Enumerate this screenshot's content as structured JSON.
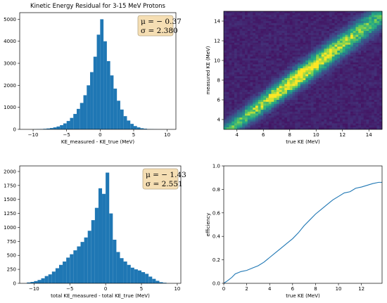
{
  "colors": {
    "bar": "#1f77b4",
    "line": "#1f77b4",
    "box_fill": "#f5deb3",
    "box_edge": "#b8a98a"
  },
  "chart_data": [
    {
      "id": "hist_ke",
      "type": "bar",
      "title": "Kinetic Energy Residual for 3-15 MeV Protons",
      "xlabel": "KE_measured - KE_true (MeV)",
      "ylabel": "",
      "xlim": [
        -12,
        11.3
      ],
      "ylim": [
        0,
        5300
      ],
      "xticks": [
        -10,
        -5,
        0,
        5,
        10
      ],
      "xtick_labels": [
        "−10",
        "−5",
        "0",
        "5",
        "10"
      ],
      "yticks": [
        0,
        1000,
        2000,
        3000,
        4000,
        5000
      ],
      "ytick_labels": [
        "0",
        "1000",
        "2000",
        "3000",
        "4000",
        "5000"
      ],
      "stats_lines": [
        "μ = − 0.37",
        "σ = 2.380"
      ],
      "bin_edges": [
        -10,
        -9.5,
        -9,
        -8.5,
        -8,
        -7.5,
        -7,
        -6.5,
        -6,
        -5.5,
        -5,
        -4.5,
        -4,
        -3.5,
        -3,
        -2.5,
        -2,
        -1.5,
        -1,
        -0.5,
        0,
        0.5,
        1,
        1.5,
        2,
        2.5,
        3,
        3.5,
        4,
        4.5,
        5,
        5.5,
        6,
        6.5,
        7,
        7.5,
        8,
        8.5,
        9,
        9.5,
        10
      ],
      "counts": [
        5,
        10,
        15,
        25,
        40,
        60,
        90,
        130,
        190,
        270,
        380,
        520,
        700,
        930,
        1200,
        1550,
        2000,
        2600,
        3300,
        4300,
        5000,
        4000,
        3100,
        2450,
        1850,
        1300,
        900,
        600,
        400,
        250,
        150,
        90,
        50,
        30,
        15,
        10,
        6,
        4,
        2,
        1
      ]
    },
    {
      "id": "heatmap_ke",
      "type": "heatmap",
      "title": "",
      "xlabel": "true KE (MeV)",
      "ylabel": "measured KE (MeV)",
      "xlim": [
        3,
        15
      ],
      "ylim": [
        3,
        15
      ],
      "xticks": [
        4,
        6,
        8,
        10,
        12,
        14
      ],
      "xtick_labels": [
        "4",
        "6",
        "8",
        "10",
        "12",
        "14"
      ],
      "yticks": [
        4,
        6,
        8,
        10,
        12,
        14
      ],
      "ytick_labels": [
        "4",
        "6",
        "8",
        "10",
        "12",
        "14"
      ],
      "colormap": "viridis",
      "band": {
        "slope": 1.0,
        "offset": -0.37,
        "sigma": 2.38
      }
    },
    {
      "id": "hist_total_ke",
      "type": "bar",
      "title": "",
      "xlabel": "total KE_measured - total KE_true (MeV)",
      "ylabel": "",
      "xlim": [
        -12,
        10.5
      ],
      "ylim": [
        0,
        2100
      ],
      "xticks": [
        -10,
        -5,
        0,
        5,
        10
      ],
      "xtick_labels": [
        "−10",
        "−5",
        "0",
        "5",
        "10"
      ],
      "yticks": [
        0,
        250,
        500,
        750,
        1000,
        1250,
        1500,
        1750,
        2000
      ],
      "ytick_labels": [
        "0",
        "250",
        "500",
        "750",
        "1000",
        "1250",
        "1500",
        "1750",
        "2000"
      ],
      "stats_lines": [
        "μ = − 1.43",
        "σ = 2.551"
      ],
      "bin_edges": [
        -11,
        -10.5,
        -10,
        -9.5,
        -9,
        -8.5,
        -8,
        -7.5,
        -7,
        -6.5,
        -6,
        -5.5,
        -5,
        -4.5,
        -4,
        -3.5,
        -3,
        -2.5,
        -2,
        -1.5,
        -1,
        -0.5,
        0,
        0.5,
        1,
        1.5,
        2,
        2.5,
        3,
        3.5,
        4,
        4.5,
        5,
        5.5,
        6,
        6.5,
        7,
        7.5,
        8,
        8.5
      ],
      "counts": [
        15,
        25,
        40,
        60,
        90,
        130,
        160,
        210,
        270,
        330,
        390,
        460,
        520,
        590,
        660,
        740,
        820,
        940,
        1130,
        1350,
        1700,
        1600,
        1980,
        1250,
        780,
        560,
        450,
        390,
        330,
        280,
        250,
        230,
        200,
        170,
        120,
        80,
        45,
        20,
        10
      ]
    },
    {
      "id": "efficiency",
      "type": "line",
      "title": "",
      "xlabel": "true KE (MeV)",
      "ylabel": "efficiency",
      "xlim": [
        0,
        13.8
      ],
      "ylim": [
        0,
        1.0
      ],
      "xticks": [
        0,
        2,
        4,
        6,
        8,
        10,
        12
      ],
      "xtick_labels": [
        "0",
        "2",
        "4",
        "6",
        "8",
        "10",
        "12"
      ],
      "yticks": [
        0,
        0.2,
        0.4,
        0.6,
        0.8,
        1.0
      ],
      "ytick_labels": [
        "0.0",
        "0.2",
        "0.4",
        "0.6",
        "0.8",
        "1.0"
      ],
      "x": [
        0,
        0.3,
        0.7,
        1.0,
        1.5,
        2.0,
        2.5,
        3.0,
        3.5,
        4.0,
        4.5,
        5.0,
        5.5,
        6.0,
        6.5,
        7.0,
        7.5,
        8.0,
        8.5,
        9.0,
        9.5,
        10.0,
        10.5,
        11.0,
        11.5,
        12.0,
        12.5,
        13.0,
        13.5,
        13.8
      ],
      "y": [
        0.0,
        0.02,
        0.05,
        0.08,
        0.1,
        0.11,
        0.13,
        0.15,
        0.18,
        0.22,
        0.26,
        0.3,
        0.34,
        0.38,
        0.43,
        0.49,
        0.54,
        0.59,
        0.63,
        0.67,
        0.71,
        0.74,
        0.77,
        0.78,
        0.81,
        0.82,
        0.835,
        0.85,
        0.86,
        0.86
      ]
    }
  ]
}
